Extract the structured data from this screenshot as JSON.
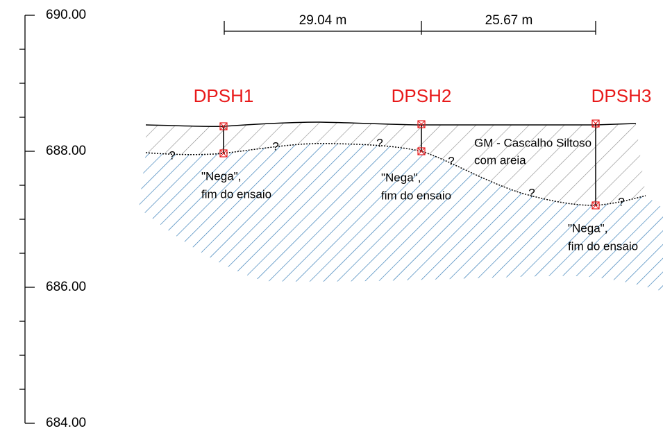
{
  "elevation_axis": {
    "labels": [
      "690.00",
      "688.00",
      "686.00",
      "684.00"
    ]
  },
  "distances": [
    "29.04 m",
    "25.67 m"
  ],
  "boreholes": [
    {
      "name": "DPSH1"
    },
    {
      "name": "DPSH2"
    },
    {
      "name": "DPSH3"
    }
  ],
  "layer_label": [
    "GM - Cascalho Siltoso",
    "com areia"
  ],
  "notes": [
    [
      "\"Nega\",",
      "fim do ensaio"
    ],
    [
      "\"Nega\",",
      "fim do ensaio"
    ],
    [
      "\"Nega\",",
      "fim do ensaio"
    ]
  ],
  "question_marks": [
    "?",
    "?",
    "?",
    "?",
    "?",
    "?"
  ]
}
